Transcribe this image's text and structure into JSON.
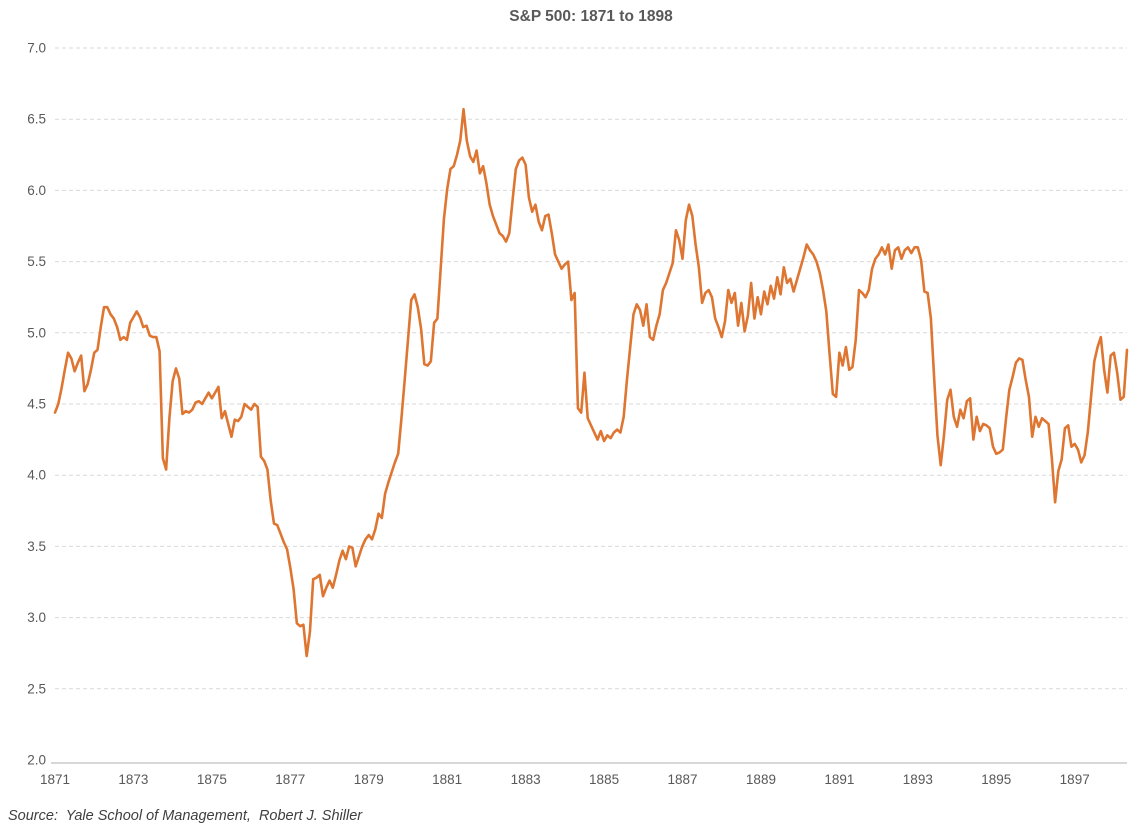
{
  "page": {
    "title": "S&P 500: 1871 to 1898",
    "source_note": "Source:  Yale School of Management,  Robert J. Shiller"
  },
  "chart_data": {
    "type": "line",
    "title": "S&P 500: 1871 to 1898",
    "xlabel": "",
    "ylabel": "",
    "ylim": [
      2.0,
      7.0
    ],
    "y_ticks": [
      2.0,
      2.5,
      3.0,
      3.5,
      4.0,
      4.5,
      5.0,
      5.5,
      6.0,
      6.5,
      7.0
    ],
    "x_tick_labels": [
      "1871",
      "1873",
      "1875",
      "1877",
      "1879",
      "1881",
      "1883",
      "1885",
      "1887",
      "1889",
      "1891",
      "1893",
      "1895",
      "1897"
    ],
    "x_start_year": 1871,
    "points_per_year": 12,
    "grid": "horizontal-dashed",
    "legend": "none",
    "line_color": "#DE7632",
    "gridline_color": "#d9d9d9",
    "axis_line_color": "#bfbfbf",
    "source": "Source:  Yale School of Management,  Robert J. Shiller",
    "series": [
      {
        "name": "S&P 500 monthly price",
        "start": "1871-01",
        "end": "1898-05",
        "values": [
          4.44,
          4.5,
          4.61,
          4.74,
          4.86,
          4.82,
          4.73,
          4.79,
          4.84,
          4.59,
          4.64,
          4.74,
          4.86,
          4.88,
          5.04,
          5.18,
          5.18,
          5.13,
          5.1,
          5.04,
          4.95,
          4.97,
          4.95,
          5.07,
          5.11,
          5.15,
          5.11,
          5.04,
          5.05,
          4.98,
          4.97,
          4.97,
          4.87,
          4.12,
          4.04,
          4.4,
          4.66,
          4.75,
          4.68,
          4.43,
          4.45,
          4.44,
          4.46,
          4.51,
          4.52,
          4.5,
          4.54,
          4.58,
          4.54,
          4.58,
          4.62,
          4.4,
          4.45,
          4.36,
          4.27,
          4.39,
          4.38,
          4.41,
          4.5,
          4.48,
          4.46,
          4.5,
          4.48,
          4.13,
          4.1,
          4.04,
          3.82,
          3.66,
          3.65,
          3.59,
          3.53,
          3.48,
          3.35,
          3.2,
          2.96,
          2.94,
          2.95,
          2.73,
          2.9,
          3.27,
          3.28,
          3.3,
          3.15,
          3.21,
          3.26,
          3.21,
          3.3,
          3.4,
          3.47,
          3.41,
          3.5,
          3.49,
          3.36,
          3.43,
          3.5,
          3.55,
          3.58,
          3.55,
          3.62,
          3.73,
          3.7,
          3.87,
          3.95,
          4.02,
          4.09,
          4.15,
          4.4,
          4.67,
          4.95,
          5.23,
          5.27,
          5.18,
          5.03,
          4.78,
          4.77,
          4.8,
          5.07,
          5.1,
          5.45,
          5.8,
          6.01,
          6.15,
          6.17,
          6.25,
          6.35,
          6.57,
          6.35,
          6.24,
          6.2,
          6.28,
          6.12,
          6.17,
          6.05,
          5.9,
          5.82,
          5.76,
          5.7,
          5.68,
          5.64,
          5.7,
          5.93,
          6.15,
          6.21,
          6.23,
          6.18,
          5.95,
          5.85,
          5.9,
          5.78,
          5.72,
          5.82,
          5.83,
          5.7,
          5.55,
          5.5,
          5.45,
          5.48,
          5.5,
          5.23,
          5.28,
          4.47,
          4.44,
          4.72,
          4.4,
          4.35,
          4.3,
          4.25,
          4.31,
          4.24,
          4.28,
          4.26,
          4.3,
          4.32,
          4.3,
          4.41,
          4.67,
          4.9,
          5.13,
          5.2,
          5.16,
          5.05,
          5.2,
          4.97,
          4.95,
          5.05,
          5.13,
          5.3,
          5.35,
          5.42,
          5.49,
          5.72,
          5.65,
          5.52,
          5.79,
          5.9,
          5.82,
          5.62,
          5.46,
          5.21,
          5.28,
          5.3,
          5.25,
          5.1,
          5.04,
          4.97,
          5.08,
          5.3,
          5.21,
          5.28,
          5.05,
          5.21,
          5.01,
          5.12,
          5.35,
          5.1,
          5.25,
          5.13,
          5.29,
          5.2,
          5.33,
          5.24,
          5.39,
          5.27,
          5.46,
          5.35,
          5.38,
          5.29,
          5.37,
          5.45,
          5.53,
          5.62,
          5.58,
          5.55,
          5.5,
          5.42,
          5.3,
          5.15,
          4.85,
          4.57,
          4.55,
          4.86,
          4.77,
          4.9,
          4.74,
          4.76,
          4.95,
          5.3,
          5.28,
          5.25,
          5.3,
          5.45,
          5.52,
          5.55,
          5.6,
          5.55,
          5.62,
          5.45,
          5.58,
          5.6,
          5.52,
          5.58,
          5.6,
          5.56,
          5.6,
          5.6,
          5.51,
          5.29,
          5.28,
          5.1,
          4.68,
          4.28,
          4.07,
          4.28,
          4.53,
          4.6,
          4.41,
          4.34,
          4.46,
          4.4,
          4.52,
          4.54,
          4.25,
          4.41,
          4.31,
          4.36,
          4.35,
          4.33,
          4.2,
          4.15,
          4.16,
          4.18,
          4.4,
          4.6,
          4.69,
          4.79,
          4.82,
          4.81,
          4.67,
          4.55,
          4.27,
          4.41,
          4.34,
          4.4,
          4.38,
          4.36,
          4.12,
          3.81,
          4.03,
          4.11,
          4.33,
          4.35,
          4.2,
          4.22,
          4.18,
          4.09,
          4.14,
          4.3,
          4.55,
          4.8,
          4.9,
          4.97,
          4.74,
          4.58,
          4.84,
          4.86,
          4.72,
          4.53,
          4.55,
          4.88
        ]
      }
    ]
  }
}
